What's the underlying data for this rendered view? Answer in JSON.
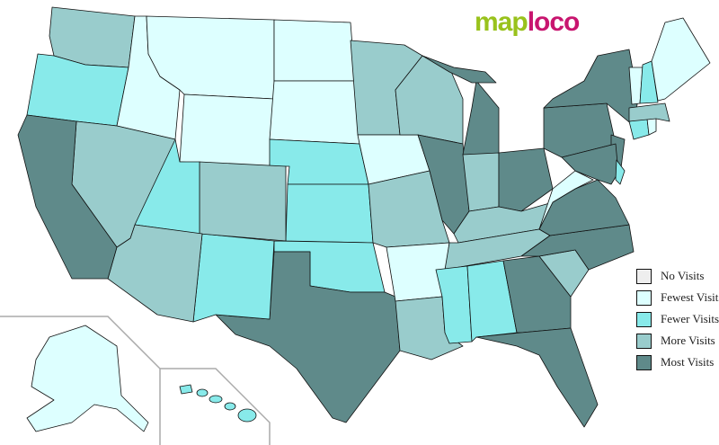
{
  "logo": {
    "part1": "map",
    "part2": "loco"
  },
  "legend": [
    {
      "label": "No Visits",
      "color": "#eeeeee"
    },
    {
      "label": "Fewest Visits",
      "color": "#ddffff"
    },
    {
      "label": "Fewer Visits",
      "color": "#88eaea"
    },
    {
      "label": "More Visits",
      "color": "#99cccc"
    },
    {
      "label": "Most Visits",
      "color": "#5f8a8a"
    }
  ],
  "states": {
    "WA": 3,
    "OR": 2,
    "ID": 1,
    "MT": 1,
    "WY": 1,
    "ND": 1,
    "SD": 1,
    "NE": 2,
    "KS": 2,
    "OK": 2,
    "TX": 4,
    "NM": 2,
    "CO": 3,
    "UT": 2,
    "AZ": 3,
    "NV": 3,
    "CA": 4,
    "MN": 3,
    "IA": 1,
    "MO": 3,
    "AR": 1,
    "LA": 3,
    "WI": 3,
    "IL": 4,
    "MI": 4,
    "MIU": 4,
    "IN": 3,
    "OH": 4,
    "KY": 3,
    "TN": 3,
    "MS": 2,
    "AL": 2,
    "GA": 4,
    "FL": 4,
    "SC": 3,
    "NC": 4,
    "VA": 4,
    "WV": 1,
    "PA": 4,
    "NY": 4,
    "NJ": 4,
    "MD": 4,
    "DE": 2,
    "CT": 2,
    "RI": 1,
    "MA": 3,
    "VT": 1,
    "NH": 2,
    "ME": 1,
    "AK": 1,
    "HI": 2
  }
}
